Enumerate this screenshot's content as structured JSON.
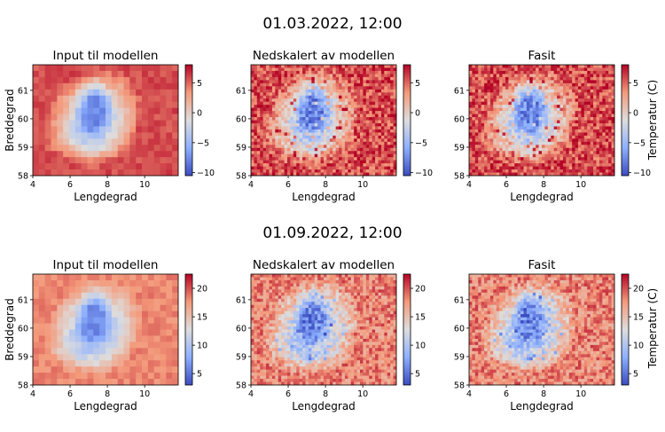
{
  "figure": {
    "rows": [
      {
        "title": "01.03.2022, 12:00"
      },
      {
        "title": "01.09.2022, 12:00"
      }
    ],
    "shared_colorbar_label": "Temperatur (C)"
  },
  "chart_data": [
    {
      "type": "heatmap",
      "row": 0,
      "col": 0,
      "title": "Input til modellen",
      "xlabel": "Lengdegrad",
      "ylabel": "Breddegrad",
      "xlim": [
        4,
        11.8
      ],
      "ylim": [
        58,
        61.9
      ],
      "xticks": [
        "4",
        "6",
        "8",
        "10"
      ],
      "yticks": [
        "58",
        "59",
        "60",
        "61"
      ],
      "colorbar": {
        "min": -10.5,
        "max": 8,
        "ticks": [
          "5",
          "0",
          "−5",
          "−10"
        ],
        "tick_values": [
          5,
          0,
          -5,
          -10
        ]
      }
    },
    {
      "type": "heatmap",
      "row": 0,
      "col": 1,
      "title": "Nedskalert av modellen",
      "xlabel": "Lengdegrad",
      "ylabel": "",
      "xlim": [
        4,
        11.8
      ],
      "ylim": [
        58,
        61.9
      ],
      "xticks": [
        "4",
        "6",
        "8",
        "10"
      ],
      "yticks": [
        "58",
        "59",
        "60",
        "61"
      ],
      "colorbar": {
        "min": -10.5,
        "max": 8,
        "ticks": [
          "5",
          "0",
          "−5",
          "−10"
        ],
        "tick_values": [
          5,
          0,
          -5,
          -10
        ]
      }
    },
    {
      "type": "heatmap",
      "row": 0,
      "col": 2,
      "title": "Fasit",
      "xlabel": "Lengdegrad",
      "ylabel": "",
      "xlim": [
        4,
        11.8
      ],
      "ylim": [
        58,
        61.9
      ],
      "xticks": [
        "4",
        "6",
        "8",
        "10"
      ],
      "yticks": [
        "58",
        "59",
        "60",
        "61"
      ],
      "colorbar": {
        "min": -10.5,
        "max": 8,
        "ticks": [
          "5",
          "0",
          "−5",
          "−10"
        ],
        "tick_values": [
          5,
          0,
          -5,
          -10
        ]
      }
    },
    {
      "type": "heatmap",
      "row": 1,
      "col": 0,
      "title": "Input til modellen",
      "xlabel": "Lengdegrad",
      "ylabel": "Breddegrad",
      "xlim": [
        4,
        11.8
      ],
      "ylim": [
        58,
        61.9
      ],
      "xticks": [
        "4",
        "6",
        "8",
        "10"
      ],
      "yticks": [
        "58",
        "59",
        "60",
        "61"
      ],
      "colorbar": {
        "min": 3,
        "max": 22.5,
        "ticks": [
          "20",
          "15",
          "10",
          "5"
        ],
        "tick_values": [
          20,
          15,
          10,
          5
        ]
      }
    },
    {
      "type": "heatmap",
      "row": 1,
      "col": 1,
      "title": "Nedskalert av modellen",
      "xlabel": "Lengdegrad",
      "ylabel": "",
      "xlim": [
        4,
        11.8
      ],
      "ylim": [
        58,
        61.9
      ],
      "xticks": [
        "4",
        "6",
        "8",
        "10"
      ],
      "yticks": [
        "58",
        "59",
        "60",
        "61"
      ],
      "colorbar": {
        "min": 3,
        "max": 22.5,
        "ticks": [
          "20",
          "15",
          "10",
          "5"
        ],
        "tick_values": [
          20,
          15,
          10,
          5
        ]
      }
    },
    {
      "type": "heatmap",
      "row": 1,
      "col": 2,
      "title": "Fasit",
      "xlabel": "Lengdegrad",
      "ylabel": "",
      "xlim": [
        4,
        11.8
      ],
      "ylim": [
        58,
        61.9
      ],
      "xticks": [
        "4",
        "6",
        "8",
        "10"
      ],
      "yticks": [
        "58",
        "59",
        "60",
        "61"
      ],
      "colorbar": {
        "min": 3,
        "max": 22.5,
        "ticks": [
          "20",
          "15",
          "10",
          "5"
        ],
        "tick_values": [
          20,
          15,
          10,
          5
        ]
      }
    }
  ],
  "colors": {
    "cmap_low": "#3b4cc0",
    "cmap_mid": "#dddddd",
    "cmap_high": "#b40426",
    "axis": "#000000"
  }
}
